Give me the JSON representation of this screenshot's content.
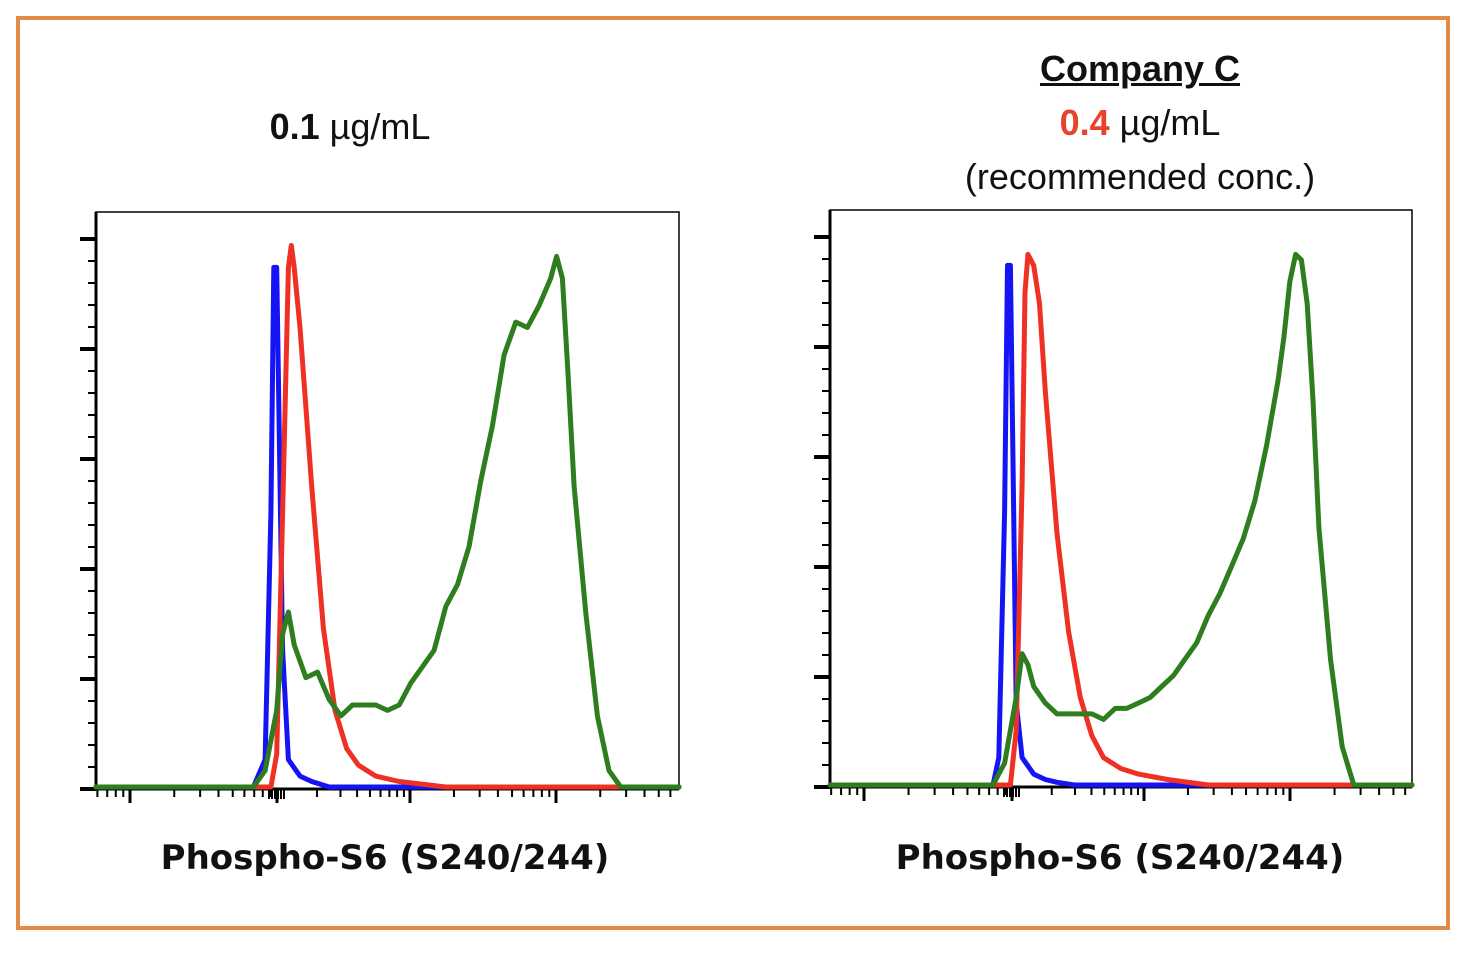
{
  "colors": {
    "frame": "#e28a46",
    "accent_red": "#e8412c",
    "series_blue": "#1414f5",
    "series_red": "#ee3124",
    "series_green": "#2e7d1e"
  },
  "panels": [
    {
      "header": {
        "company": "",
        "value": "0.1",
        "unit": "µg/mL",
        "note": ""
      },
      "xlabel": "Phospho-S6 (S240/244)"
    },
    {
      "header": {
        "company": "Company C",
        "value": "0.4",
        "unit": "µg/mL",
        "note": "(recommended conc.)"
      },
      "xlabel": "Phospho-S6 (S240/244)"
    }
  ],
  "chart_data": [
    {
      "type": "line",
      "title": "0.1 µg/mL",
      "xlabel": "Phospho-S6 (S240/244)",
      "ylabel": "",
      "x_scale": "log",
      "xlim": [
        0,
        1
      ],
      "ylim": [
        0,
        1
      ],
      "grid": false,
      "series": [
        {
          "color": "#1414f5",
          "x": [
            0.0,
            0.27,
            0.29,
            0.3,
            0.305,
            0.31,
            0.32,
            0.33,
            0.35,
            0.37,
            0.4,
            1.0
          ],
          "y": [
            0,
            0,
            0.05,
            0.5,
            0.95,
            0.95,
            0.25,
            0.05,
            0.02,
            0.01,
            0,
            0
          ]
        },
        {
          "color": "#ee3124",
          "x": [
            0.0,
            0.3,
            0.31,
            0.32,
            0.33,
            0.335,
            0.34,
            0.35,
            0.37,
            0.39,
            0.41,
            0.43,
            0.45,
            0.48,
            0.52,
            0.6,
            1.0
          ],
          "y": [
            0,
            0,
            0.06,
            0.5,
            0.95,
            0.99,
            0.95,
            0.84,
            0.55,
            0.29,
            0.14,
            0.07,
            0.04,
            0.02,
            0.01,
            0,
            0
          ]
        },
        {
          "color": "#2e7d1e",
          "x": [
            0.0,
            0.27,
            0.29,
            0.31,
            0.32,
            0.33,
            0.34,
            0.36,
            0.38,
            0.4,
            0.42,
            0.44,
            0.46,
            0.48,
            0.5,
            0.52,
            0.54,
            0.56,
            0.58,
            0.6,
            0.62,
            0.64,
            0.66,
            0.68,
            0.7,
            0.72,
            0.74,
            0.76,
            0.78,
            0.79,
            0.8,
            0.81,
            0.82,
            0.84,
            0.86,
            0.88,
            0.9,
            0.92,
            0.95,
            1.0
          ],
          "y": [
            0,
            0,
            0.03,
            0.14,
            0.28,
            0.32,
            0.26,
            0.2,
            0.21,
            0.16,
            0.13,
            0.15,
            0.15,
            0.15,
            0.14,
            0.15,
            0.19,
            0.22,
            0.25,
            0.33,
            0.37,
            0.44,
            0.56,
            0.66,
            0.79,
            0.85,
            0.84,
            0.88,
            0.93,
            0.97,
            0.93,
            0.75,
            0.55,
            0.32,
            0.13,
            0.03,
            0,
            0,
            0,
            0
          ]
        }
      ]
    },
    {
      "type": "line",
      "title": "0.4 µg/mL",
      "xlabel": "Phospho-S6 (S240/244)",
      "ylabel": "",
      "x_scale": "log",
      "xlim": [
        0,
        1
      ],
      "ylim": [
        0,
        1
      ],
      "grid": false,
      "series": [
        {
          "color": "#1414f5",
          "x": [
            0.0,
            0.28,
            0.29,
            0.3,
            0.305,
            0.31,
            0.315,
            0.32,
            0.33,
            0.35,
            0.37,
            0.39,
            0.42,
            1.0
          ],
          "y": [
            0,
            0,
            0.05,
            0.5,
            0.95,
            0.95,
            0.55,
            0.15,
            0.05,
            0.02,
            0.01,
            0.005,
            0,
            0
          ]
        },
        {
          "color": "#ee3124",
          "x": [
            0.0,
            0.31,
            0.32,
            0.33,
            0.335,
            0.34,
            0.35,
            0.36,
            0.37,
            0.39,
            0.41,
            0.43,
            0.45,
            0.47,
            0.5,
            0.53,
            0.58,
            0.65,
            1.0
          ],
          "y": [
            0,
            0,
            0.1,
            0.55,
            0.9,
            0.97,
            0.95,
            0.88,
            0.72,
            0.46,
            0.28,
            0.16,
            0.09,
            0.05,
            0.03,
            0.02,
            0.01,
            0,
            0
          ]
        },
        {
          "color": "#2e7d1e",
          "x": [
            0.0,
            0.28,
            0.3,
            0.32,
            0.33,
            0.34,
            0.35,
            0.37,
            0.39,
            0.41,
            0.43,
            0.45,
            0.47,
            0.49,
            0.51,
            0.53,
            0.55,
            0.57,
            0.59,
            0.61,
            0.63,
            0.65,
            0.67,
            0.69,
            0.71,
            0.73,
            0.75,
            0.77,
            0.78,
            0.79,
            0.8,
            0.81,
            0.82,
            0.83,
            0.84,
            0.86,
            0.88,
            0.9,
            0.93,
            1.0
          ],
          "y": [
            0,
            0,
            0.04,
            0.16,
            0.24,
            0.22,
            0.18,
            0.15,
            0.13,
            0.13,
            0.13,
            0.13,
            0.12,
            0.14,
            0.14,
            0.15,
            0.16,
            0.18,
            0.2,
            0.23,
            0.26,
            0.31,
            0.35,
            0.4,
            0.45,
            0.52,
            0.62,
            0.74,
            0.82,
            0.92,
            0.97,
            0.96,
            0.88,
            0.7,
            0.47,
            0.23,
            0.07,
            0,
            0,
            0
          ]
        }
      ]
    }
  ]
}
